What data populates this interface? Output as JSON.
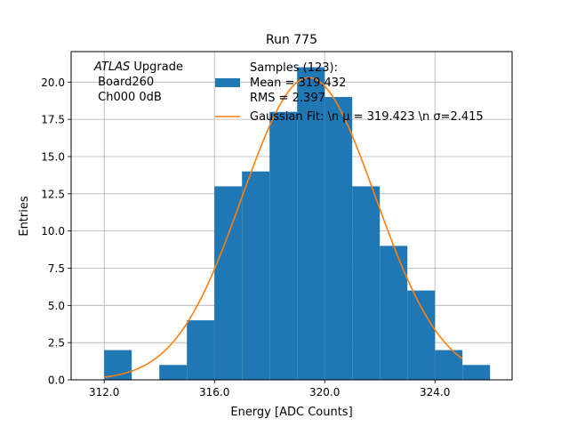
{
  "chart_data": {
    "type": "bar",
    "title": "Run 775",
    "xlabel": "Energy [ADC Counts]",
    "ylabel": "Entries",
    "xlim": [
      310.8,
      326.8
    ],
    "ylim": [
      0,
      22.05
    ],
    "xticks": [
      312.0,
      316.0,
      320.0,
      324.0
    ],
    "xtick_labels": [
      "312.0",
      "316.0",
      "320.0",
      "324.0"
    ],
    "yticks": [
      0,
      2.5,
      5,
      7.5,
      10,
      12.5,
      15,
      17.5,
      20
    ],
    "ytick_labels": [
      "0.0",
      "2.5",
      "5.0",
      "7.5",
      "10.0",
      "12.5",
      "15.0",
      "17.5",
      "20.0"
    ],
    "grid": true,
    "bins": [
      {
        "x0": 312,
        "x1": 313,
        "value": 2
      },
      {
        "x0": 313,
        "x1": 314,
        "value": 0
      },
      {
        "x0": 314,
        "x1": 315,
        "value": 1
      },
      {
        "x0": 315,
        "x1": 316,
        "value": 4
      },
      {
        "x0": 316,
        "x1": 317,
        "value": 13
      },
      {
        "x0": 317,
        "x1": 318,
        "value": 14
      },
      {
        "x0": 318,
        "x1": 319,
        "value": 18
      },
      {
        "x0": 319,
        "x1": 320,
        "value": 21
      },
      {
        "x0": 320,
        "x1": 321,
        "value": 19
      },
      {
        "x0": 321,
        "x1": 322,
        "value": 13
      },
      {
        "x0": 322,
        "x1": 323,
        "value": 9
      },
      {
        "x0": 323,
        "x1": 324,
        "value": 6
      },
      {
        "x0": 324,
        "x1": 325,
        "value": 2
      },
      {
        "x0": 325,
        "x1": 326,
        "value": 1
      }
    ],
    "fit": {
      "type": "gaussian",
      "mu": 319.423,
      "sigma": 2.415,
      "amplitude": 20.3,
      "x_range": [
        312,
        325
      ]
    },
    "colors": {
      "histogram": "#1f77b4",
      "fit": "#ff7f0e",
      "grid": "#b0b0b0"
    },
    "annotation": {
      "italic": "ATLAS",
      "line1_rest": " Upgrade",
      "line2": " Board260",
      "line3": " Ch000 0dB"
    },
    "legend": {
      "placement": "upper-center",
      "entries": [
        {
          "kind": "patch",
          "lines": [
            "Samples (123):",
            " Mean = 319.432",
            " RMS = 2.397"
          ]
        },
        {
          "kind": "line",
          "lines": [
            "Gaussian Fit: \\n μ = 319.423 \\n σ=2.415"
          ]
        }
      ]
    }
  }
}
